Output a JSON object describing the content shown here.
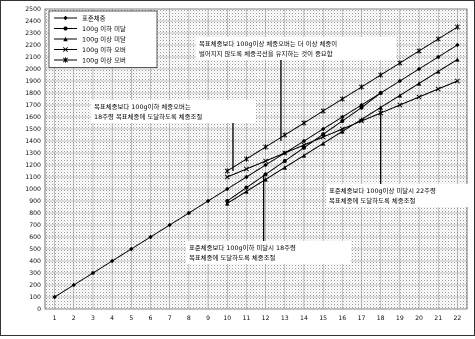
{
  "chart_data": {
    "type": "line",
    "title": "",
    "xlabel": "",
    "ylabel": "",
    "x": [
      1,
      2,
      3,
      4,
      5,
      6,
      7,
      8,
      9,
      10,
      11,
      12,
      13,
      14,
      15,
      16,
      17,
      18,
      19,
      20,
      21,
      22
    ],
    "xlim": [
      0.5,
      22.5
    ],
    "ylim": [
      0,
      2500
    ],
    "ytick_step": 100,
    "grid": true,
    "legend_position": "top-left",
    "series": [
      {
        "name": "표준체중",
        "marker": "diamond",
        "points": [
          [
            1,
            100
          ],
          [
            2,
            200
          ],
          [
            3,
            300
          ],
          [
            4,
            400
          ],
          [
            5,
            500
          ],
          [
            6,
            600
          ],
          [
            7,
            700
          ],
          [
            8,
            800
          ],
          [
            9,
            900
          ],
          [
            10,
            1000
          ],
          [
            11,
            1100
          ],
          [
            12,
            1200
          ],
          [
            13,
            1300
          ],
          [
            14,
            1400
          ],
          [
            15,
            1500
          ],
          [
            16,
            1600
          ],
          [
            17,
            1700
          ],
          [
            18,
            1800
          ],
          [
            19,
            1900
          ],
          [
            20,
            2000
          ],
          [
            21,
            2100
          ],
          [
            22,
            2200
          ]
        ]
      },
      {
        "name": "100g 이하 미달",
        "marker": "circle",
        "points": [
          [
            10,
            900
          ],
          [
            11,
            1011
          ],
          [
            12,
            1122
          ],
          [
            13,
            1233
          ],
          [
            14,
            1344
          ],
          [
            15,
            1456
          ],
          [
            16,
            1567
          ],
          [
            17,
            1678
          ],
          [
            18,
            1800
          ]
        ]
      },
      {
        "name": "100g 이상 미달",
        "marker": "triangle",
        "points": [
          [
            10,
            880
          ],
          [
            11,
            980
          ],
          [
            12,
            1080
          ],
          [
            13,
            1180
          ],
          [
            14,
            1280
          ],
          [
            15,
            1380
          ],
          [
            16,
            1480
          ],
          [
            17,
            1580
          ],
          [
            18,
            1680
          ],
          [
            19,
            1780
          ],
          [
            20,
            1880
          ],
          [
            21,
            1980
          ],
          [
            22,
            2080
          ]
        ]
      },
      {
        "name": "100g 이하 오버",
        "marker": "x",
        "points": [
          [
            10,
            1100
          ],
          [
            11,
            1167
          ],
          [
            12,
            1233
          ],
          [
            13,
            1300
          ],
          [
            14,
            1367
          ],
          [
            15,
            1433
          ],
          [
            16,
            1500
          ],
          [
            17,
            1567
          ],
          [
            18,
            1633
          ],
          [
            19,
            1700
          ],
          [
            20,
            1767
          ],
          [
            21,
            1833
          ],
          [
            22,
            1900
          ]
        ]
      },
      {
        "name": "100g 이상 오버",
        "marker": "star",
        "points": [
          [
            10,
            1150
          ],
          [
            11,
            1250
          ],
          [
            12,
            1350
          ],
          [
            13,
            1450
          ],
          [
            14,
            1550
          ],
          [
            15,
            1650
          ],
          [
            16,
            1750
          ],
          [
            17,
            1850
          ],
          [
            18,
            1950
          ],
          [
            19,
            2050
          ],
          [
            20,
            2150
          ],
          [
            21,
            2250
          ],
          [
            22,
            2350
          ]
        ]
      }
    ],
    "annotations": [
      {
        "lines": [
          "목표체중보다 100g이상 체중오버는 더 이상 체중이",
          "벌어지지 않도록 체중곡선을 유지하는 것이 중요함"
        ],
        "pointer": [
          12.8,
          1400
        ]
      },
      {
        "lines": [
          "목표체중보다 100g이하 체중오버는",
          "18주령 목표체중에 도달하도록 체중조절"
        ],
        "pointer": [
          10.3,
          1150
        ]
      },
      {
        "lines": [
          "표준체중보다 100g이상 미달시 22주령",
          "목표체중에 도달하도록 체중조절"
        ],
        "pointer": [
          18,
          1680
        ]
      },
      {
        "lines": [
          "표준체중보다 100g이하 미달시 18주령",
          "목표체중에 도달하도록 체중조절"
        ],
        "pointer": [
          11.9,
          1120
        ]
      }
    ]
  }
}
